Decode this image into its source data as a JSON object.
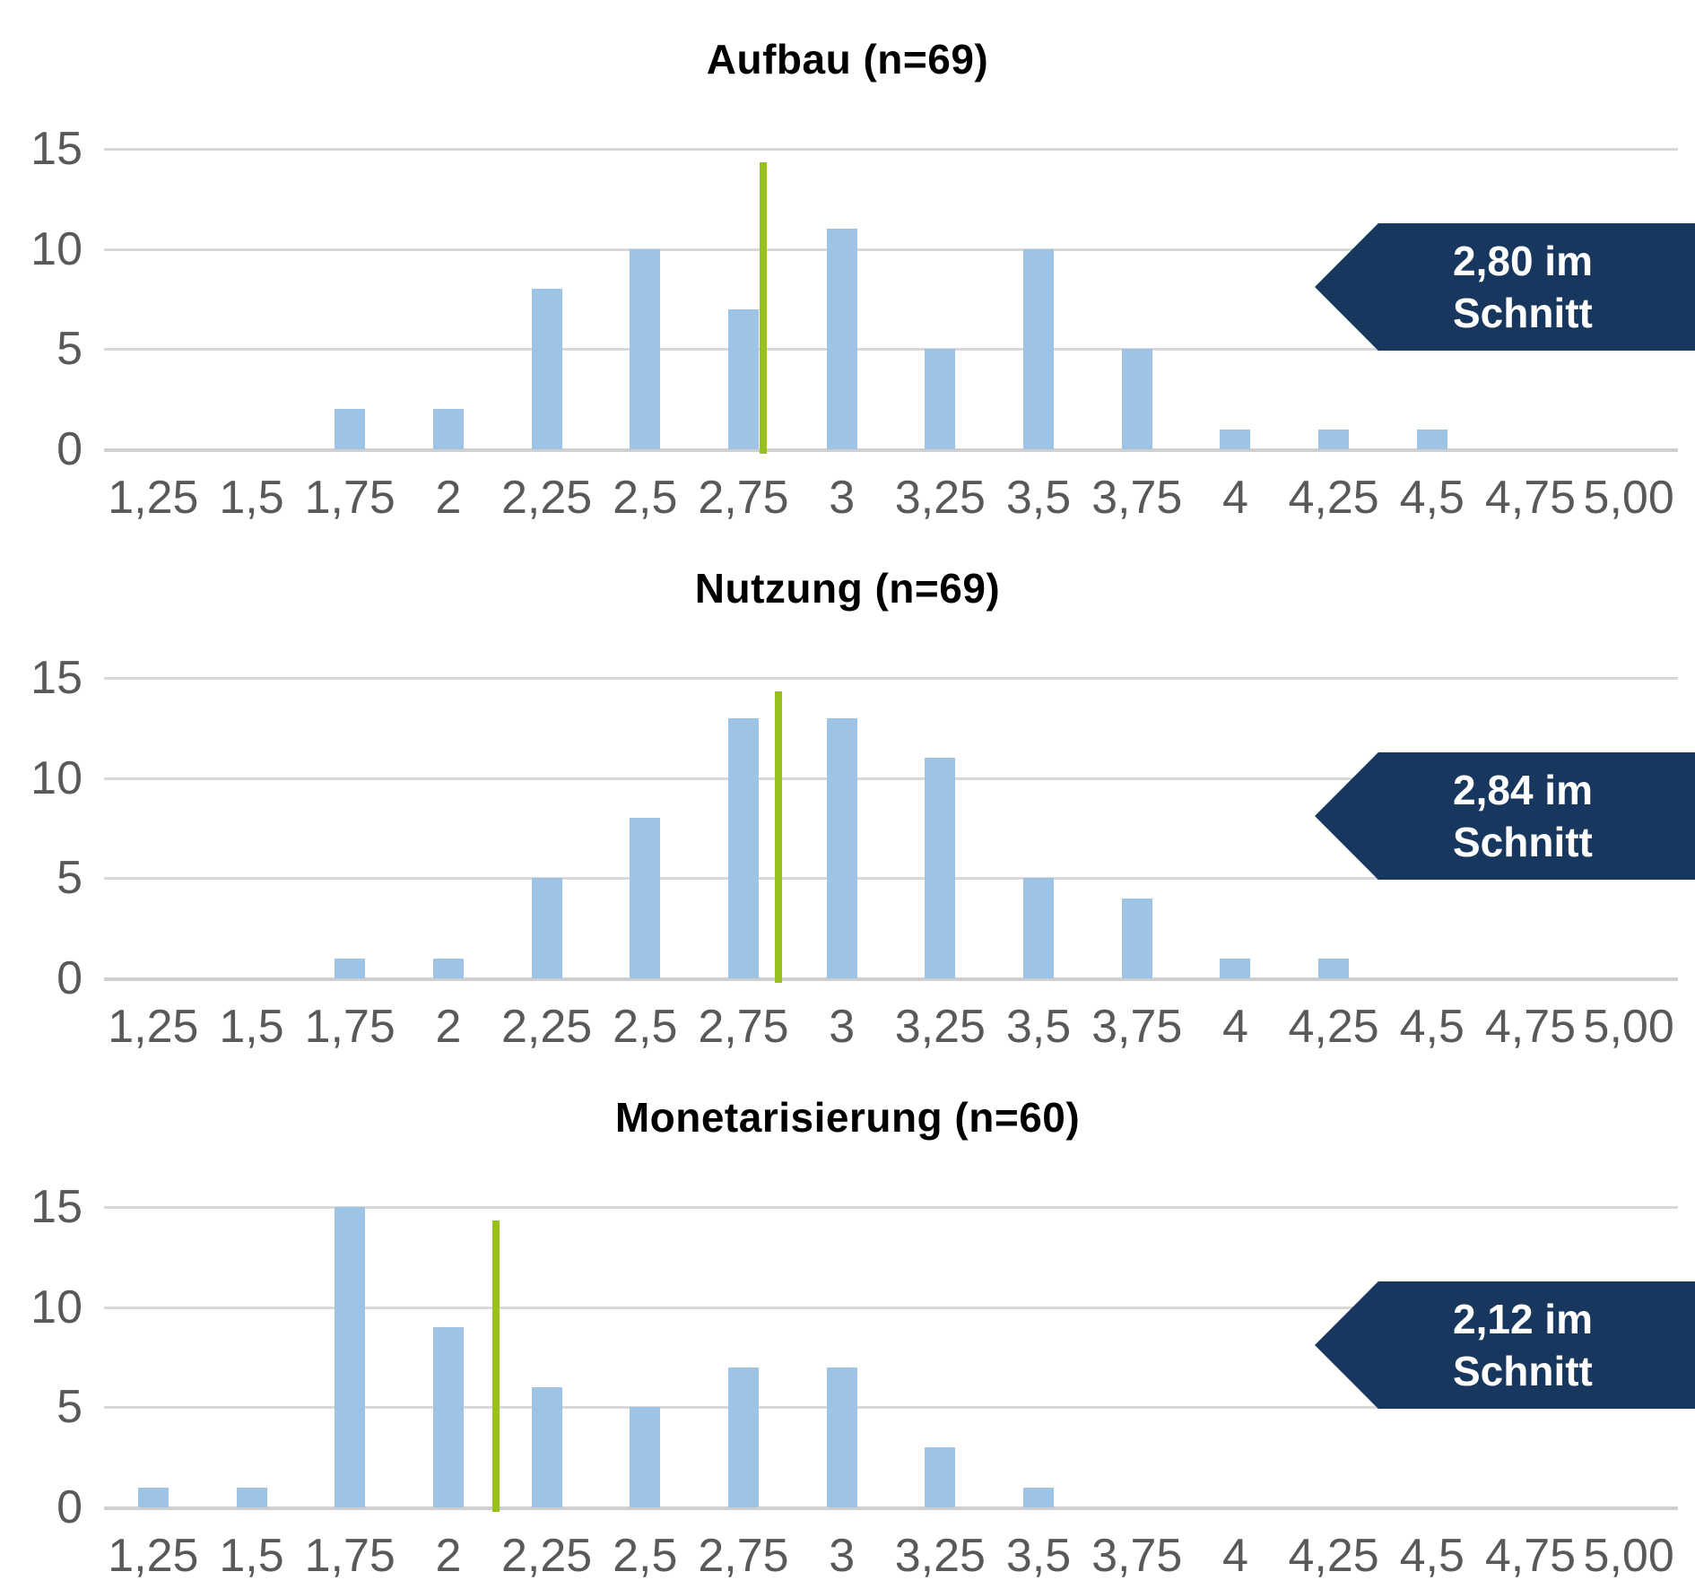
{
  "colors": {
    "bar": "#9DC3E6",
    "mean_line": "#97C11F",
    "badge_background": "#17375E",
    "badge_text": "#FFFFFF",
    "gridline": "#D9D9D9",
    "axis_baseline": "#CFCFCF",
    "axis_label": "#595959",
    "title_text": "#000000"
  },
  "y_axis": {
    "tick_labels": [
      "15",
      "10",
      "5",
      "0"
    ],
    "tick_values": [
      15,
      10,
      5,
      0
    ],
    "max": 15
  },
  "x_axis": {
    "labels": [
      "1,25",
      "1,5",
      "1,75",
      "2",
      "2,25",
      "2,5",
      "2,75",
      "3",
      "3,25",
      "3,5",
      "3,75",
      "4",
      "4,25",
      "4,5",
      "4,75",
      "5,00"
    ],
    "values": [
      1.25,
      1.5,
      1.75,
      2.0,
      2.25,
      2.5,
      2.75,
      3.0,
      3.25,
      3.5,
      3.75,
      4.0,
      4.25,
      4.5,
      4.75,
      5.0
    ]
  },
  "chart_data": [
    {
      "type": "bar",
      "title": "Aufbau (n=69)",
      "n": 69,
      "categories": [
        "1,25",
        "1,5",
        "1,75",
        "2",
        "2,25",
        "2,5",
        "2,75",
        "3",
        "3,25",
        "3,5",
        "3,75",
        "4",
        "4,25",
        "4,5",
        "4,75",
        "5,00"
      ],
      "values": [
        0,
        0,
        2,
        2,
        8,
        10,
        7,
        11,
        5,
        10,
        5,
        1,
        1,
        1,
        0,
        0
      ],
      "xlabel": "",
      "ylabel": "",
      "ylim": [
        0,
        15
      ],
      "y_ticks": [
        0,
        5,
        10,
        15
      ],
      "grid": "horizontal",
      "legend": "none",
      "mean": 2.8,
      "mean_marker": "vertical-green-line",
      "annotation": {
        "line1": "2,80 im",
        "line2": "Schnitt",
        "full": "2,80 im Schnitt",
        "position": "right"
      }
    },
    {
      "type": "bar",
      "title": "Nutzung (n=69)",
      "n": 69,
      "categories": [
        "1,25",
        "1,5",
        "1,75",
        "2",
        "2,25",
        "2,5",
        "2,75",
        "3",
        "3,25",
        "3,5",
        "3,75",
        "4",
        "4,25",
        "4,5",
        "4,75",
        "5,00"
      ],
      "values": [
        0,
        0,
        1,
        1,
        5,
        8,
        13,
        13,
        11,
        5,
        4,
        1,
        1,
        0,
        0,
        0
      ],
      "xlabel": "",
      "ylabel": "",
      "ylim": [
        0,
        15
      ],
      "y_ticks": [
        0,
        5,
        10,
        15
      ],
      "grid": "horizontal",
      "legend": "none",
      "mean": 2.84,
      "mean_marker": "vertical-green-line",
      "annotation": {
        "line1": "2,84 im",
        "line2": "Schnitt",
        "full": "2,84 im Schnitt",
        "position": "right"
      }
    },
    {
      "type": "bar",
      "title": "Monetarisierung (n=60)",
      "n": 60,
      "categories": [
        "1,25",
        "1,5",
        "1,75",
        "2",
        "2,25",
        "2,5",
        "2,75",
        "3",
        "3,25",
        "3,5",
        "3,75",
        "4",
        "4,25",
        "4,5",
        "4,75",
        "5,00"
      ],
      "values": [
        1,
        1,
        15,
        9,
        6,
        5,
        7,
        7,
        3,
        1,
        0,
        0,
        0,
        0,
        0,
        0
      ],
      "xlabel": "",
      "ylabel": "",
      "ylim": [
        0,
        15
      ],
      "y_ticks": [
        0,
        5,
        10,
        15
      ],
      "grid": "horizontal",
      "legend": "none",
      "mean": 2.12,
      "mean_marker": "vertical-green-line",
      "annotation": {
        "line1": "2,12 im",
        "line2": "Schnitt",
        "full": "2,12 im Schnitt",
        "position": "right"
      }
    }
  ]
}
